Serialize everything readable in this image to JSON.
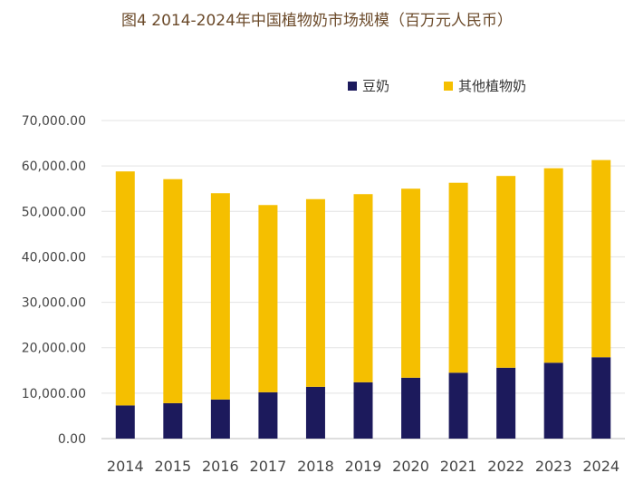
{
  "chart_data": {
    "type": "bar",
    "stacked": true,
    "title": "图4 2014-2024年中国植物奶市场规模（百万元人民币）",
    "categories": [
      "2014",
      "2015",
      "2016",
      "2017",
      "2018",
      "2019",
      "2020",
      "2021",
      "2022",
      "2023",
      "2024"
    ],
    "series": [
      {
        "name": "豆奶",
        "color": "#1c1a5c",
        "values": [
          7300,
          7800,
          8600,
          10200,
          11400,
          12400,
          13400,
          14500,
          15600,
          16700,
          17900
        ]
      },
      {
        "name": "其他植物奶",
        "color": "#f5bf00",
        "values": [
          51500,
          49300,
          45400,
          41200,
          41300,
          41400,
          41600,
          41800,
          42200,
          42800,
          43400
        ]
      }
    ],
    "y_ticks": [
      "0.00",
      "10,000.00",
      "20,000.00",
      "30,000.00",
      "40,000.00",
      "50,000.00",
      "60,000.00",
      "70,000.00"
    ],
    "ylim": [
      0,
      70000
    ],
    "xlabel": "",
    "ylabel": "",
    "grid": true,
    "legend_position": "top-right"
  }
}
